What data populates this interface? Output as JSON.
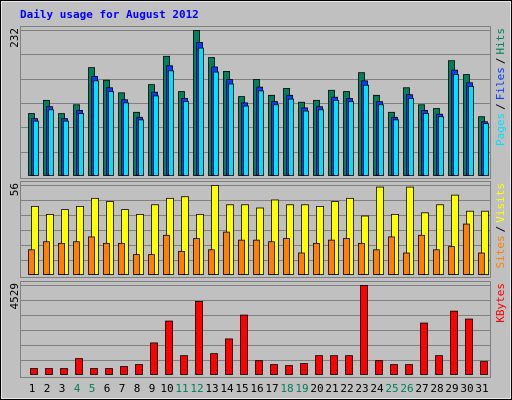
{
  "chart_data": [
    {
      "type": "bar",
      "title": "Daily usage for August 2012",
      "ylim": [
        0,
        232
      ],
      "yticks": [
        232
      ],
      "legend_separator": "/",
      "series": [
        {
          "name": "Hits",
          "color": "#00805c",
          "values": [
            100,
            121,
            100,
            114,
            173,
            153,
            133,
            102,
            146,
            191,
            135,
            232,
            189,
            167,
            127,
            154,
            129,
            140,
            118,
            121,
            137,
            135,
            165,
            129,
            102,
            141,
            114,
            108,
            184,
            162,
            95
          ]
        },
        {
          "name": "Files",
          "color": "#0040ff",
          "values": [
            92,
            111,
            92,
            105,
            159,
            141,
            122,
            94,
            134,
            176,
            124,
            213,
            174,
            154,
            117,
            142,
            119,
            129,
            109,
            111,
            126,
            124,
            152,
            119,
            94,
            130,
            105,
            99,
            169,
            149,
            87
          ]
        },
        {
          "name": "Pages",
          "color": "#00e0ff",
          "values": [
            88,
            106,
            88,
            100,
            152,
            135,
            117,
            90,
            128,
            168,
            119,
            204,
            166,
            147,
            112,
            136,
            114,
            123,
            104,
            106,
            121,
            119,
            145,
            114,
            90,
            124,
            100,
            95,
            162,
            143,
            84
          ]
        }
      ]
    },
    {
      "type": "bar",
      "ylim": [
        0,
        56
      ],
      "yticks": [
        56
      ],
      "legend_separator": "/",
      "series": [
        {
          "name": "Visits",
          "color": "#ffff00",
          "values": [
            43,
            38,
            41,
            43,
            48,
            46,
            41,
            38,
            44,
            48,
            49,
            38,
            56,
            44,
            44,
            42,
            47,
            44,
            44,
            43,
            46,
            48,
            37,
            55,
            38,
            55,
            39,
            44,
            50,
            40,
            40
          ]
        },
        {
          "name": "Sites",
          "color": "#ff8000",
          "values": [
            16,
            21,
            20,
            21,
            24,
            20,
            20,
            13,
            13,
            25,
            15,
            23,
            16,
            27,
            22,
            22,
            21,
            23,
            14,
            20,
            22,
            23,
            20,
            16,
            24,
            14,
            25,
            16,
            18,
            32,
            14
          ]
        }
      ]
    },
    {
      "type": "bar",
      "ylim": [
        0,
        4529
      ],
      "yticks": [
        4529
      ],
      "categories": [
        "1",
        "2",
        "3",
        "4",
        "5",
        "6",
        "7",
        "8",
        "9",
        "10",
        "11",
        "12",
        "13",
        "14",
        "15",
        "16",
        "17",
        "18",
        "19",
        "20",
        "21",
        "22",
        "23",
        "24",
        "25",
        "26",
        "27",
        "28",
        "29",
        "30",
        "31"
      ],
      "category_colors": [
        "#000000",
        "#000000",
        "#000000",
        "#00805c",
        "#00805c",
        "#000000",
        "#000000",
        "#000000",
        "#000000",
        "#000000",
        "#00805c",
        "#00805c",
        "#000000",
        "#000000",
        "#000000",
        "#000000",
        "#000000",
        "#00805c",
        "#00805c",
        "#000000",
        "#000000",
        "#000000",
        "#000000",
        "#000000",
        "#00805c",
        "#00805c",
        "#000000",
        "#000000",
        "#000000",
        "#000000",
        "#000000"
      ],
      "series": [
        {
          "name": "KBytes",
          "color": "#ff0000",
          "values": [
            350,
            350,
            350,
            850,
            350,
            350,
            450,
            550,
            1640,
            2740,
            1000,
            3730,
            1100,
            1840,
            3040,
            750,
            550,
            500,
            600,
            1000,
            1000,
            1000,
            4529,
            750,
            550,
            550,
            2640,
            1000,
            3240,
            2840,
            700
          ]
        }
      ]
    }
  ]
}
